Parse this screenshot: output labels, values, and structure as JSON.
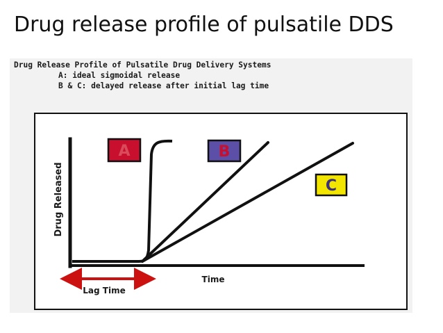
{
  "slide": {
    "title": "Drug release profile of pulsatile DDS"
  },
  "figure": {
    "header_title": "Drug Release Profile of Pulsatile Drug Delivery Systems",
    "header_line_a": "A: ideal sigmoidal release",
    "header_line_bc": "B & C: delayed release after initial lag time",
    "y_axis_label": "Drug Released",
    "x_axis_label": "Time",
    "lag_label": "Lag Time",
    "curves": [
      {
        "key": "A",
        "label": "A",
        "badge_color": "#c8102e",
        "description": "ideal sigmoidal release"
      },
      {
        "key": "B",
        "label": "B",
        "badge_color": "#5b4fa8",
        "description": "delayed release after initial lag time"
      },
      {
        "key": "C",
        "label": "C",
        "badge_color": "#f2e600",
        "description": "delayed release after initial lag time"
      }
    ],
    "colors": {
      "curve": "#111111",
      "lag_arrow": "#cc1111",
      "frame": "#111111"
    }
  }
}
